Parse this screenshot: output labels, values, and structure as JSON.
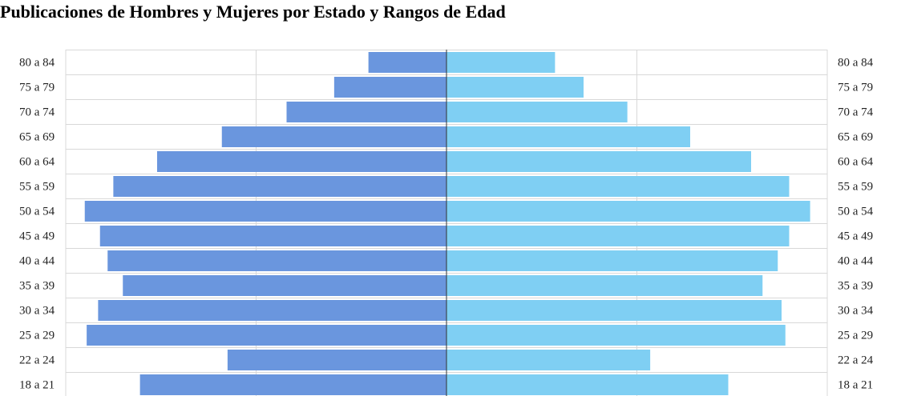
{
  "chart_data": {
    "type": "bar",
    "orientation": "horizontal",
    "layout": "population-pyramid",
    "title": "Publicaciones de Hombres y Mujeres por Estado y Rangos de Edad",
    "categories": [
      "80 a 84",
      "75 a 79",
      "70 a 74",
      "65 a 69",
      "60 a 64",
      "55 a 59",
      "50 a 54",
      "45 a 49",
      "40 a 44",
      "35 a 39",
      "30 a 34",
      "25 a 29",
      "22 a 24",
      "18 a 21"
    ],
    "series": [
      {
        "values": [
          0.41,
          0.59,
          0.84,
          1.18,
          1.52,
          1.75,
          1.9,
          1.82,
          1.78,
          1.7,
          1.83,
          1.89,
          1.15,
          1.61
        ],
        "side": "left",
        "color": "#6a96de"
      },
      {
        "values": [
          0.57,
          0.72,
          0.95,
          1.28,
          1.6,
          1.8,
          1.91,
          1.8,
          1.74,
          1.66,
          1.76,
          1.78,
          1.07,
          1.48
        ],
        "side": "right",
        "color": "#7fcff3"
      }
    ],
    "xlim": [
      -2,
      2
    ],
    "gridlines": [
      -2,
      -1,
      0,
      1,
      2
    ],
    "grid": true,
    "legend": "none",
    "category_labels_both_sides": true
  }
}
